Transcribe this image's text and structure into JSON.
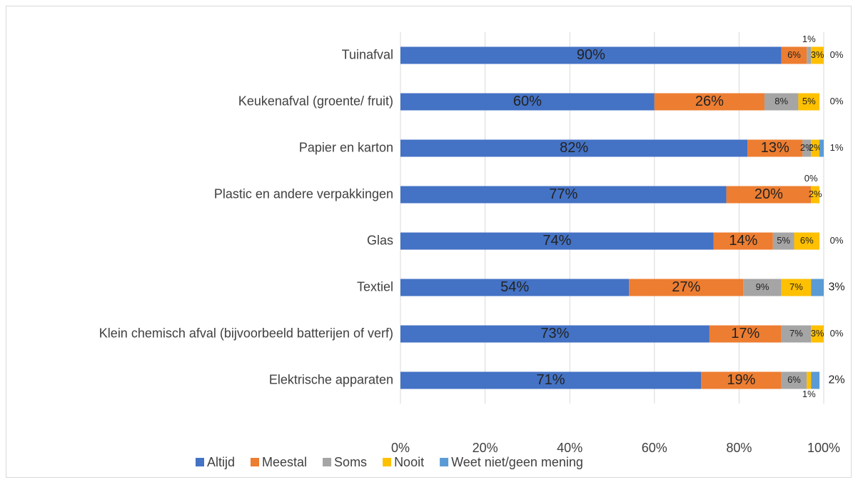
{
  "chart_data": {
    "type": "stacked-bar-horizontal",
    "categories": [
      "Tuinafval",
      "Keukenafval (groente/ fruit)",
      "Papier en karton",
      "Plastic en andere verpakkingen",
      "Glas",
      "Textiel",
      "Klein chemisch afval (bijvoorbeeld batterijen of verf)",
      "Elektrische apparaten"
    ],
    "series": [
      {
        "name": "Altijd",
        "color": "#4472c4",
        "values": [
          90,
          60,
          82,
          77,
          74,
          54,
          73,
          71
        ],
        "value_labels": [
          "90%",
          "60%",
          "82%",
          "77%",
          "74%",
          "54%",
          "73%",
          "71%"
        ]
      },
      {
        "name": "Meestal",
        "color": "#ed7d31",
        "values": [
          6,
          26,
          13,
          20,
          14,
          27,
          17,
          19
        ],
        "value_labels": [
          "6%",
          "26%",
          "13%",
          "20%",
          "14%",
          "27%",
          "17%",
          "19%"
        ]
      },
      {
        "name": "Soms",
        "color": "#a5a5a5",
        "values": [
          1,
          8,
          2,
          0,
          5,
          9,
          7,
          6
        ],
        "value_labels": [
          "1%",
          "8%",
          "2%",
          "0%",
          "5%",
          "9%",
          "7%",
          "6%"
        ]
      },
      {
        "name": "Nooit",
        "color": "#ffc000",
        "values": [
          3,
          5,
          2,
          2,
          6,
          7,
          3,
          1
        ],
        "value_labels": [
          "3%",
          "5%",
          "2%",
          "2%",
          "6%",
          "7%",
          "3%",
          "1%"
        ]
      },
      {
        "name": "Weet niet/geen mening",
        "color": "#5b9bd5",
        "values": [
          0,
          0,
          1,
          0,
          0,
          3,
          0,
          2
        ],
        "value_labels": [
          "0%",
          "0%",
          "1%",
          null,
          "0%",
          "3%",
          "0%",
          "2%"
        ]
      }
    ],
    "xlim": [
      0,
      100
    ],
    "xticks": [
      {
        "value": 0,
        "label": "0%"
      },
      {
        "value": 20,
        "label": "20%"
      },
      {
        "value": 40,
        "label": "40%"
      },
      {
        "value": 60,
        "label": "60%"
      },
      {
        "value": 80,
        "label": "80%"
      },
      {
        "value": 100,
        "label": "100%"
      }
    ],
    "grid": true,
    "legend": "bottom"
  }
}
